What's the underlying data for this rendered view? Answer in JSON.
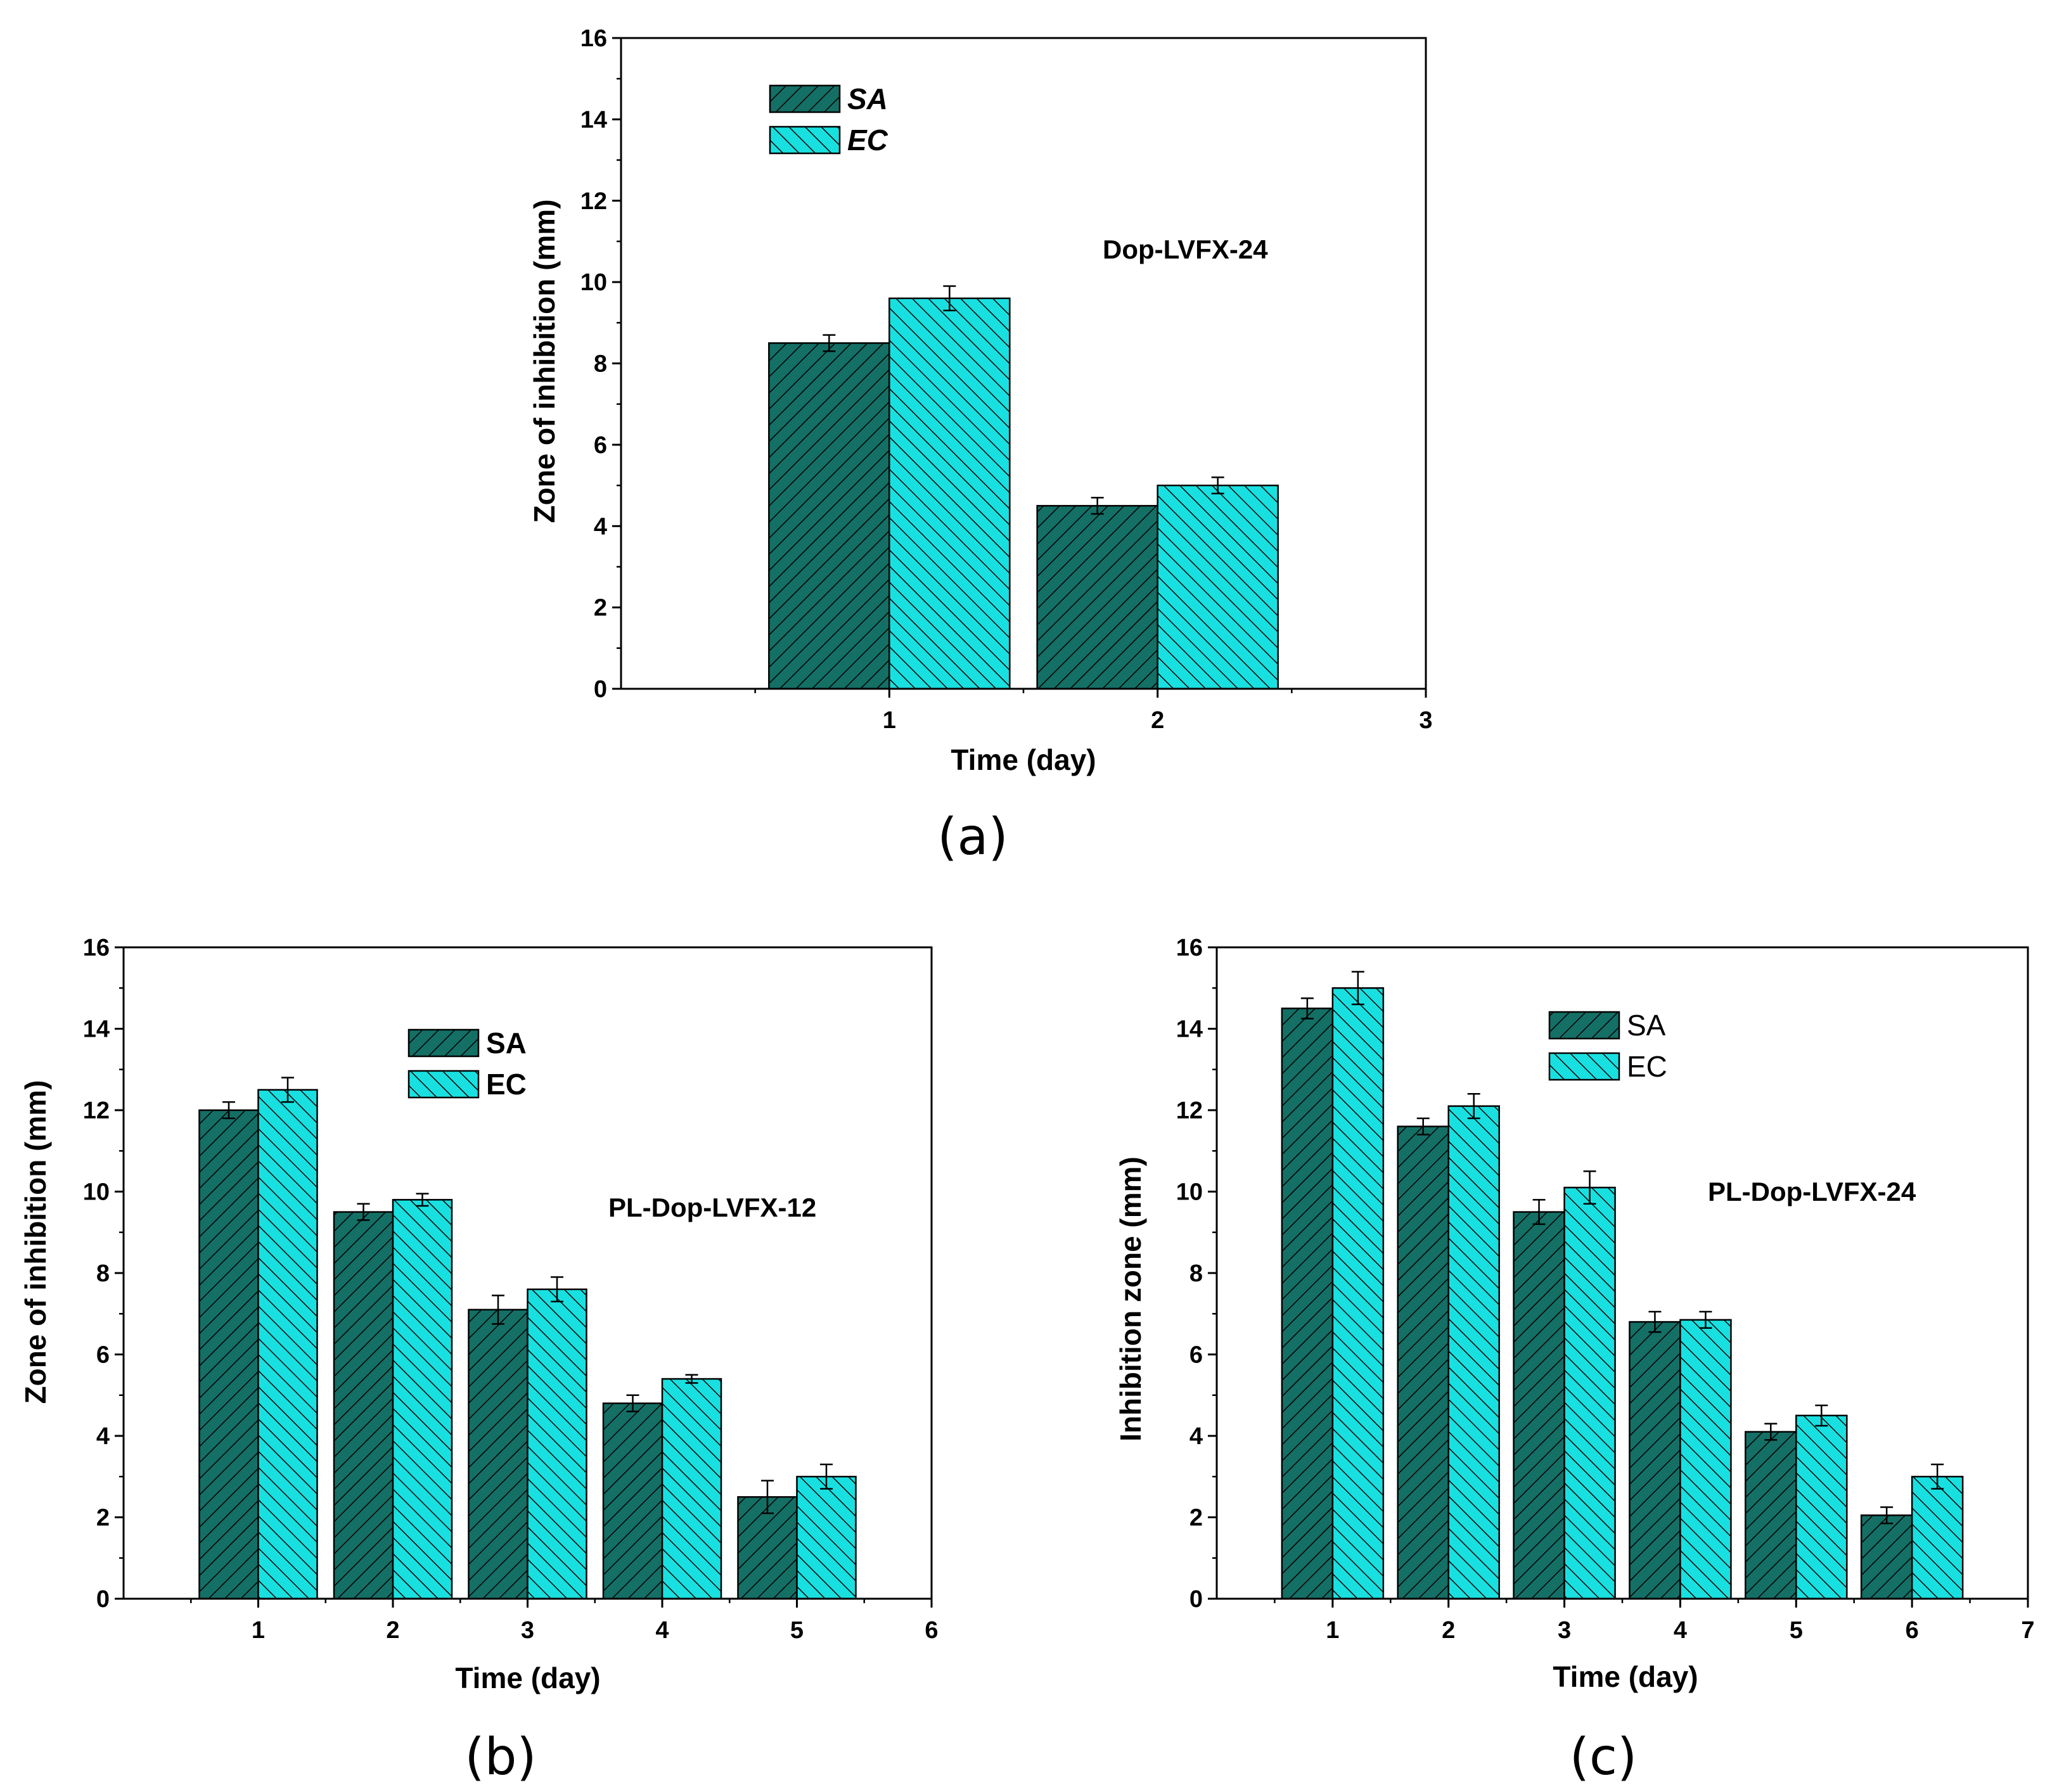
{
  "colors": {
    "sa_fill": "#146f65",
    "ec_fill": "#19e0e0",
    "hatch": "#000000",
    "axis": "#000000",
    "background": "#ffffff"
  },
  "chart_data": [
    {
      "id": "a",
      "type": "bar",
      "panel_label": "(a)",
      "annotation": "Dop-LVFX-24",
      "xlabel": "Time (day)",
      "ylabel": "Zone of inhibition (mm)",
      "xlim": [
        0,
        3
      ],
      "xticks": [
        1,
        2,
        3
      ],
      "ylim": [
        0,
        16
      ],
      "yticks": [
        0,
        2,
        4,
        6,
        8,
        10,
        12,
        14,
        16
      ],
      "legend_style": "italic",
      "legend_position": "top-left",
      "series": [
        {
          "name": "SA",
          "x": [
            1,
            2
          ],
          "values": [
            8.5,
            4.5
          ],
          "errors": [
            0.2,
            0.2
          ]
        },
        {
          "name": "EC",
          "x": [
            1,
            2
          ],
          "values": [
            9.6,
            5.0
          ],
          "errors": [
            0.3,
            0.2
          ]
        }
      ]
    },
    {
      "id": "b",
      "type": "bar",
      "panel_label": "(b)",
      "annotation": "PL-Dop-LVFX-12",
      "xlabel": "Time (day)",
      "ylabel": "Zone of inhibition (mm)",
      "xlim": [
        0,
        6
      ],
      "xticks": [
        1,
        2,
        3,
        4,
        5,
        6
      ],
      "ylim": [
        0,
        16
      ],
      "yticks": [
        0,
        2,
        4,
        6,
        8,
        10,
        12,
        14,
        16
      ],
      "legend_style": "bold",
      "legend_position": "top-center",
      "series": [
        {
          "name": "SA",
          "x": [
            1,
            2,
            3,
            4,
            5
          ],
          "values": [
            12.0,
            9.5,
            7.1,
            4.8,
            2.5
          ],
          "errors": [
            0.2,
            0.2,
            0.35,
            0.2,
            0.4
          ]
        },
        {
          "name": "EC",
          "x": [
            1,
            2,
            3,
            4,
            5
          ],
          "values": [
            12.5,
            9.8,
            7.6,
            5.4,
            3.0
          ],
          "errors": [
            0.3,
            0.15,
            0.3,
            0.1,
            0.3
          ]
        }
      ]
    },
    {
      "id": "c",
      "type": "bar",
      "panel_label": "(c)",
      "annotation": "PL-Dop-LVFX-24",
      "xlabel": "Time (day)",
      "ylabel": "Inhibition zone (mm)",
      "xlim": [
        0,
        7
      ],
      "xticks": [
        1,
        2,
        3,
        4,
        5,
        6,
        7
      ],
      "ylim": [
        0,
        16
      ],
      "yticks": [
        0,
        2,
        4,
        6,
        8,
        10,
        12,
        14,
        16
      ],
      "legend_style": "normal",
      "legend_position": "top-center",
      "series": [
        {
          "name": "SA",
          "x": [
            1,
            2,
            3,
            4,
            5,
            6
          ],
          "values": [
            14.5,
            11.6,
            9.5,
            6.8,
            4.1,
            2.05
          ],
          "errors": [
            0.25,
            0.2,
            0.3,
            0.25,
            0.2,
            0.2
          ]
        },
        {
          "name": "EC",
          "x": [
            1,
            2,
            3,
            4,
            5,
            6
          ],
          "values": [
            15.0,
            12.1,
            10.1,
            6.85,
            4.5,
            3.0
          ],
          "errors": [
            0.4,
            0.3,
            0.4,
            0.2,
            0.25,
            0.3
          ]
        }
      ]
    }
  ]
}
